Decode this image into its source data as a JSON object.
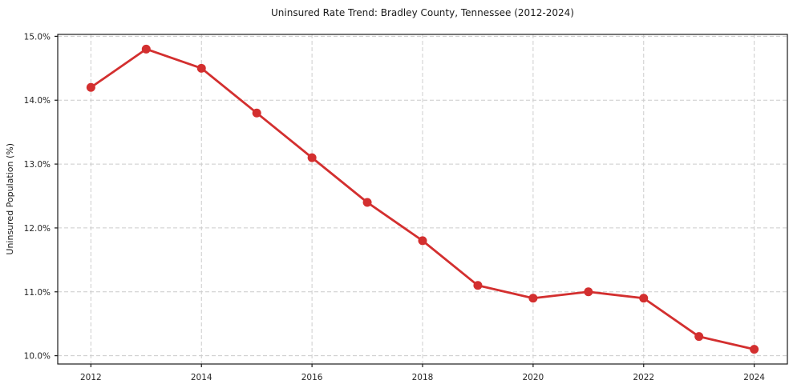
{
  "chart_data": {
    "type": "line",
    "title": "Uninsured Rate Trend: Bradley County, Tennessee (2012-2024)",
    "xlabel": "",
    "ylabel": "Uninsured Population (%)",
    "x": [
      2012,
      2013,
      2014,
      2015,
      2016,
      2017,
      2018,
      2019,
      2020,
      2021,
      2022,
      2023,
      2024
    ],
    "values": [
      14.2,
      14.8,
      14.5,
      13.8,
      13.1,
      12.4,
      11.8,
      11.1,
      10.9,
      11.0,
      10.9,
      10.3,
      10.1
    ],
    "xticks": [
      2012,
      2014,
      2016,
      2018,
      2020,
      2022,
      2024
    ],
    "xtick_labels": [
      "2012",
      "2014",
      "2016",
      "2018",
      "2020",
      "2022",
      "2024"
    ],
    "yticks": [
      10.0,
      11.0,
      12.0,
      13.0,
      14.0,
      15.0
    ],
    "ytick_labels": [
      "10.0%",
      "11.0%",
      "12.0%",
      "13.0%",
      "14.0%",
      "15.0%"
    ],
    "xlim": [
      2011.4,
      2024.6
    ],
    "ylim": [
      9.87,
      15.03
    ],
    "grid": "dashed gridlines at major ticks, both axes",
    "legend": "none",
    "line_color": "#d32f2f",
    "marker": "circle",
    "grid_color": "#cccccc",
    "axis_color": "#1a1a1a",
    "background": "#ffffff"
  }
}
